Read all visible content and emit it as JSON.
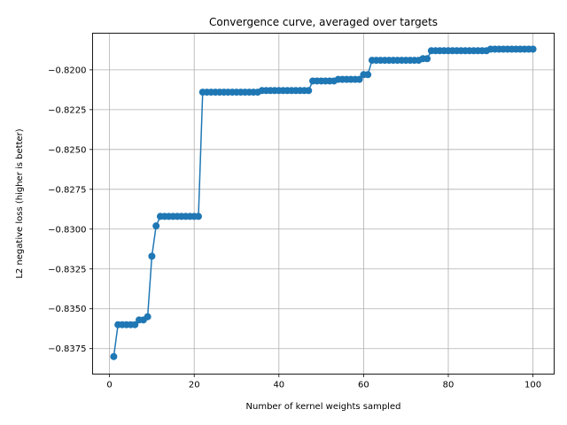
{
  "chart_data": {
    "type": "line",
    "title": "Convergence curve, averaged over targets",
    "xlabel": "Number of kernel weights sampled",
    "ylabel": "L2 negative loss (higher is better)",
    "xlim": [
      -4,
      105
    ],
    "ylim": [
      -0.8391,
      -0.8177
    ],
    "xticks": [
      0,
      20,
      40,
      60,
      80,
      100
    ],
    "yticks": [
      -0.8375,
      -0.835,
      -0.8325,
      -0.83,
      -0.8275,
      -0.825,
      -0.8225,
      -0.82
    ],
    "xtick_labels": [
      "0",
      "20",
      "40",
      "60",
      "80",
      "100"
    ],
    "ytick_labels": [
      "−0.8375",
      "−0.8350",
      "−0.8325",
      "−0.8300",
      "−0.8275",
      "−0.8250",
      "−0.8225",
      "−0.8200"
    ],
    "grid": true,
    "color": "#1f77b4",
    "series": [
      {
        "x": [
          1,
          2,
          3,
          4,
          5,
          6,
          7,
          8,
          9,
          10,
          11,
          12,
          13,
          14,
          15,
          16,
          17,
          18,
          19,
          20,
          21,
          22,
          23,
          24,
          25,
          26,
          27,
          28,
          29,
          30,
          31,
          32,
          33,
          34,
          35,
          36,
          37,
          38,
          39,
          40,
          41,
          42,
          43,
          44,
          45,
          46,
          47,
          48,
          49,
          50,
          51,
          52,
          53,
          54,
          55,
          56,
          57,
          58,
          59,
          60,
          61,
          62,
          63,
          64,
          65,
          66,
          67,
          68,
          69,
          70,
          71,
          72,
          73,
          74,
          75,
          76,
          77,
          78,
          79,
          80,
          81,
          82,
          83,
          84,
          85,
          86,
          87,
          88,
          89,
          90,
          91,
          92,
          93,
          94,
          95,
          96,
          97,
          98,
          99,
          100
        ],
        "y": [
          -0.838,
          -0.836,
          -0.836,
          -0.836,
          -0.836,
          -0.836,
          -0.8357,
          -0.8357,
          -0.8355,
          -0.8317,
          -0.8298,
          -0.8292,
          -0.8292,
          -0.8292,
          -0.8292,
          -0.8292,
          -0.8292,
          -0.8292,
          -0.8292,
          -0.8292,
          -0.8292,
          -0.8214,
          -0.8214,
          -0.8214,
          -0.8214,
          -0.8214,
          -0.8214,
          -0.8214,
          -0.8214,
          -0.8214,
          -0.8214,
          -0.8214,
          -0.8214,
          -0.8214,
          -0.8214,
          -0.8213,
          -0.8213,
          -0.8213,
          -0.8213,
          -0.8213,
          -0.8213,
          -0.8213,
          -0.8213,
          -0.8213,
          -0.8213,
          -0.8213,
          -0.8213,
          -0.8207,
          -0.8207,
          -0.8207,
          -0.8207,
          -0.8207,
          -0.8207,
          -0.8206,
          -0.8206,
          -0.8206,
          -0.8206,
          -0.8206,
          -0.8206,
          -0.8203,
          -0.8203,
          -0.8194,
          -0.8194,
          -0.8194,
          -0.8194,
          -0.8194,
          -0.8194,
          -0.8194,
          -0.8194,
          -0.8194,
          -0.8194,
          -0.8194,
          -0.8194,
          -0.8193,
          -0.8193,
          -0.8188,
          -0.8188,
          -0.8188,
          -0.8188,
          -0.8188,
          -0.8188,
          -0.8188,
          -0.8188,
          -0.8188,
          -0.8188,
          -0.8188,
          -0.8188,
          -0.8188,
          -0.8188,
          -0.8187,
          -0.8187,
          -0.8187,
          -0.8187,
          -0.8187,
          -0.8187,
          -0.8187,
          -0.8187,
          -0.8187,
          -0.8187,
          -0.8187
        ]
      }
    ]
  }
}
